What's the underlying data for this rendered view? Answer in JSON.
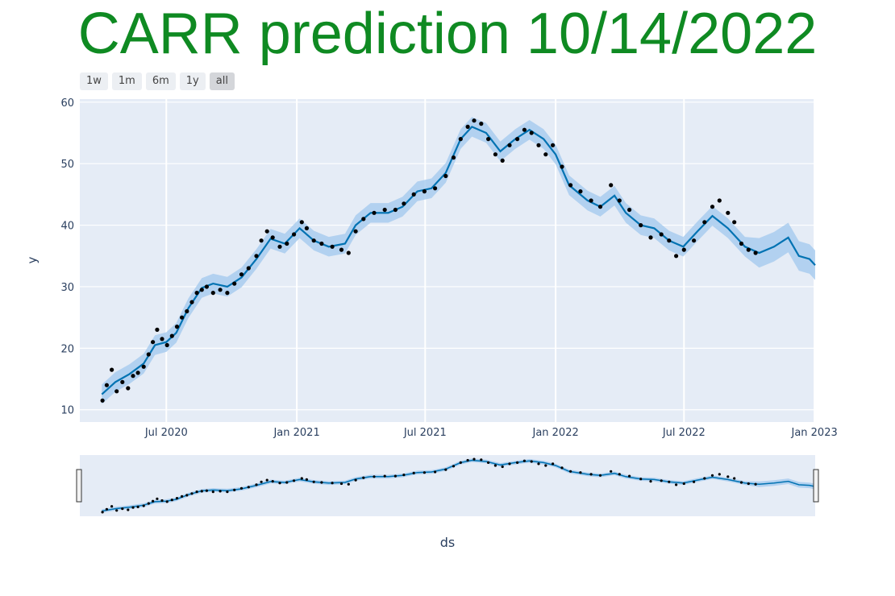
{
  "title": "CARR prediction 10/14/2022",
  "title_color": "#0f8a22",
  "range_selector": {
    "buttons": [
      "1w",
      "1m",
      "6m",
      "1y",
      "all"
    ],
    "active": "all"
  },
  "colors": {
    "plot_bg": "#e5ecf6",
    "forecast_line": "#0072b2",
    "uncertainty_band": "#a9cdee",
    "actual_points": "#000000",
    "axis_text": "#2a3f5f"
  },
  "chart_data": {
    "type": "line",
    "title": "CARR prediction 10/14/2022",
    "xlabel": "ds",
    "ylabel": "y",
    "x_range": [
      "2020-03-01",
      "2023-01-02"
    ],
    "ylim": [
      8,
      60.5
    ],
    "y_ticks": [
      10,
      20,
      30,
      40,
      50,
      60
    ],
    "x_ticks": [
      {
        "date": "2020-07-01",
        "label": "Jul 2020"
      },
      {
        "date": "2021-01-01",
        "label": "Jan 2021"
      },
      {
        "date": "2021-07-01",
        "label": "Jul 2021"
      },
      {
        "date": "2022-01-01",
        "label": "Jan 2022"
      },
      {
        "date": "2022-07-01",
        "label": "Jul 2022"
      },
      {
        "date": "2023-01-01",
        "label": "Jan 2023"
      }
    ],
    "grid": true,
    "history_end": "2022-10-14",
    "series": [
      {
        "kind": "forecast",
        "points": [
          [
            "2020-04-01",
            12.5
          ],
          [
            "2020-04-20",
            14.5
          ],
          [
            "2020-05-10",
            15.8
          ],
          [
            "2020-05-30",
            17.5
          ],
          [
            "2020-06-15",
            20.5
          ],
          [
            "2020-07-01",
            21.0
          ],
          [
            "2020-07-15",
            22.5
          ],
          [
            "2020-08-01",
            26.5
          ],
          [
            "2020-08-20",
            29.8
          ],
          [
            "2020-09-05",
            30.5
          ],
          [
            "2020-09-25",
            30.0
          ],
          [
            "2020-10-15",
            31.5
          ],
          [
            "2020-11-05",
            34.5
          ],
          [
            "2020-11-25",
            37.8
          ],
          [
            "2020-12-15",
            37.0
          ],
          [
            "2021-01-05",
            39.5
          ],
          [
            "2021-01-25",
            37.5
          ],
          [
            "2021-02-15",
            36.5
          ],
          [
            "2021-03-10",
            37.0
          ],
          [
            "2021-03-25",
            40.0
          ],
          [
            "2021-04-15",
            42.0
          ],
          [
            "2021-05-10",
            42.0
          ],
          [
            "2021-05-30",
            43.0
          ],
          [
            "2021-06-20",
            45.5
          ],
          [
            "2021-07-10",
            46.0
          ],
          [
            "2021-07-30",
            48.5
          ],
          [
            "2021-08-20",
            54.0
          ],
          [
            "2021-09-05",
            56.0
          ],
          [
            "2021-09-25",
            55.0
          ],
          [
            "2021-10-15",
            52.0
          ],
          [
            "2021-11-05",
            54.0
          ],
          [
            "2021-11-25",
            55.5
          ],
          [
            "2021-12-15",
            54.0
          ],
          [
            "2022-01-01",
            51.5
          ],
          [
            "2022-01-20",
            46.5
          ],
          [
            "2022-02-15",
            44.0
          ],
          [
            "2022-03-05",
            43.0
          ],
          [
            "2022-03-25",
            44.8
          ],
          [
            "2022-04-10",
            42.0
          ],
          [
            "2022-05-01",
            40.0
          ],
          [
            "2022-05-20",
            39.5
          ],
          [
            "2022-06-10",
            37.5
          ],
          [
            "2022-06-30",
            36.5
          ],
          [
            "2022-07-20",
            39.0
          ],
          [
            "2022-08-10",
            41.5
          ],
          [
            "2022-09-01",
            39.5
          ],
          [
            "2022-09-25",
            36.5
          ],
          [
            "2022-10-15",
            35.5
          ],
          [
            "2022-11-05",
            36.5
          ],
          [
            "2022-11-25",
            38.0
          ],
          [
            "2022-12-10",
            35.0
          ],
          [
            "2022-12-25",
            34.5
          ],
          [
            "2023-01-02",
            33.5
          ]
        ]
      },
      {
        "kind": "actual",
        "points": [
          [
            "2020-04-02",
            11.5
          ],
          [
            "2020-04-08",
            14.0
          ],
          [
            "2020-04-15",
            16.5
          ],
          [
            "2020-04-22",
            13.0
          ],
          [
            "2020-04-30",
            14.5
          ],
          [
            "2020-05-08",
            13.5
          ],
          [
            "2020-05-15",
            15.5
          ],
          [
            "2020-05-22",
            16.0
          ],
          [
            "2020-05-30",
            17.0
          ],
          [
            "2020-06-06",
            19.0
          ],
          [
            "2020-06-12",
            21.0
          ],
          [
            "2020-06-18",
            23.0
          ],
          [
            "2020-06-25",
            21.5
          ],
          [
            "2020-07-02",
            20.5
          ],
          [
            "2020-07-09",
            22.0
          ],
          [
            "2020-07-16",
            23.5
          ],
          [
            "2020-07-23",
            25.0
          ],
          [
            "2020-07-30",
            26.0
          ],
          [
            "2020-08-06",
            27.5
          ],
          [
            "2020-08-13",
            29.0
          ],
          [
            "2020-08-20",
            29.5
          ],
          [
            "2020-08-27",
            30.0
          ],
          [
            "2020-09-05",
            29.0
          ],
          [
            "2020-09-15",
            29.5
          ],
          [
            "2020-09-25",
            29.0
          ],
          [
            "2020-10-05",
            30.5
          ],
          [
            "2020-10-15",
            32.0
          ],
          [
            "2020-10-25",
            33.0
          ],
          [
            "2020-11-05",
            35.0
          ],
          [
            "2020-11-12",
            37.5
          ],
          [
            "2020-11-20",
            39.0
          ],
          [
            "2020-11-28",
            38.0
          ],
          [
            "2020-12-08",
            36.5
          ],
          [
            "2020-12-18",
            37.0
          ],
          [
            "2020-12-28",
            38.5
          ],
          [
            "2021-01-08",
            40.5
          ],
          [
            "2021-01-15",
            39.5
          ],
          [
            "2021-01-25",
            37.5
          ],
          [
            "2021-02-05",
            37.0
          ],
          [
            "2021-02-20",
            36.5
          ],
          [
            "2021-03-05",
            36.0
          ],
          [
            "2021-03-15",
            35.5
          ],
          [
            "2021-03-25",
            39.0
          ],
          [
            "2021-04-05",
            41.0
          ],
          [
            "2021-04-20",
            42.0
          ],
          [
            "2021-05-05",
            42.5
          ],
          [
            "2021-05-20",
            42.5
          ],
          [
            "2021-06-01",
            43.5
          ],
          [
            "2021-06-15",
            45.0
          ],
          [
            "2021-06-30",
            45.5
          ],
          [
            "2021-07-15",
            46.0
          ],
          [
            "2021-07-30",
            48.0
          ],
          [
            "2021-08-10",
            51.0
          ],
          [
            "2021-08-20",
            54.0
          ],
          [
            "2021-08-30",
            56.0
          ],
          [
            "2021-09-08",
            57.0
          ],
          [
            "2021-09-18",
            56.5
          ],
          [
            "2021-09-28",
            54.0
          ],
          [
            "2021-10-08",
            51.5
          ],
          [
            "2021-10-18",
            50.5
          ],
          [
            "2021-10-28",
            53.0
          ],
          [
            "2021-11-08",
            54.0
          ],
          [
            "2021-11-18",
            55.5
          ],
          [
            "2021-11-28",
            55.0
          ],
          [
            "2021-12-08",
            53.0
          ],
          [
            "2021-12-18",
            51.5
          ],
          [
            "2021-12-28",
            53.0
          ],
          [
            "2022-01-10",
            49.5
          ],
          [
            "2022-01-22",
            46.5
          ],
          [
            "2022-02-05",
            45.5
          ],
          [
            "2022-02-20",
            44.0
          ],
          [
            "2022-03-05",
            43.0
          ],
          [
            "2022-03-20",
            46.5
          ],
          [
            "2022-04-01",
            44.0
          ],
          [
            "2022-04-15",
            42.5
          ],
          [
            "2022-05-01",
            40.0
          ],
          [
            "2022-05-15",
            38.0
          ],
          [
            "2022-05-30",
            38.5
          ],
          [
            "2022-06-10",
            37.5
          ],
          [
            "2022-06-20",
            35.0
          ],
          [
            "2022-07-01",
            36.0
          ],
          [
            "2022-07-15",
            37.5
          ],
          [
            "2022-07-30",
            40.5
          ],
          [
            "2022-08-10",
            43.0
          ],
          [
            "2022-08-20",
            44.0
          ],
          [
            "2022-09-01",
            42.0
          ],
          [
            "2022-09-10",
            40.5
          ],
          [
            "2022-09-20",
            37.0
          ],
          [
            "2022-09-30",
            36.0
          ],
          [
            "2022-10-10",
            35.5
          ]
        ]
      }
    ]
  }
}
